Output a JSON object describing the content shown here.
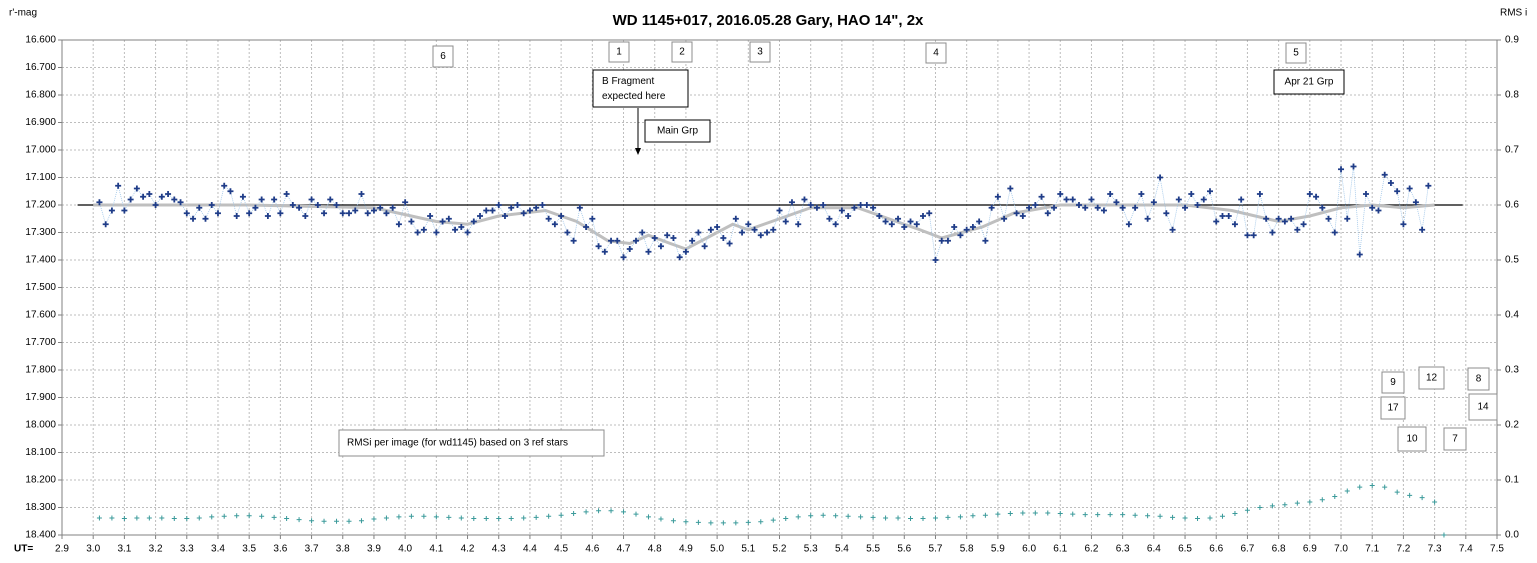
{
  "chart_data": {
    "type": "scatter",
    "title": "WD 1145+017,  2016.05.28  Gary, HAO  14\", 2x",
    "y_label": "r'-mag",
    "y2_label": "RMS i",
    "x_label": "UT=",
    "xlim": [
      2.9,
      7.5
    ],
    "xticks": [
      2.9,
      {
        "value": 3.0,
        "label": "3.0"
      },
      3.1,
      3.2,
      3.3,
      3.4,
      3.5,
      3.6,
      3.7,
      3.8,
      3.9,
      {
        "value": 4.0,
        "label": "4.0"
      },
      4.1,
      4.2,
      4.3,
      4.4,
      4.5,
      4.6,
      4.7,
      4.8,
      4.9,
      {
        "value": 5.0,
        "label": "5.0"
      },
      5.1,
      5.2,
      5.3,
      5.4,
      5.5,
      5.6,
      5.7,
      5.8,
      5.9,
      {
        "value": 6.0,
        "label": "6.0"
      },
      6.1,
      6.2,
      6.3,
      6.4,
      6.5,
      6.6,
      6.7,
      6.8,
      6.9,
      {
        "value": 7.0,
        "label": "7.0"
      },
      7.1,
      7.2,
      7.3,
      7.4,
      7.5
    ],
    "ylim": [
      16.6,
      18.4
    ],
    "y_reversed": true,
    "yticks": [
      {
        "value": 16.6,
        "label": "16.600"
      },
      {
        "value": 16.7,
        "label": "16.700"
      },
      {
        "value": 16.8,
        "label": "16.800"
      },
      {
        "value": 16.9,
        "label": "16.900"
      },
      {
        "value": 17.0,
        "label": "17.000"
      },
      {
        "value": 17.1,
        "label": "17.100"
      },
      {
        "value": 17.2,
        "label": "17.200"
      },
      {
        "value": 17.3,
        "label": "17.300"
      },
      {
        "value": 17.4,
        "label": "17.400"
      },
      {
        "value": 17.5,
        "label": "17.500"
      },
      {
        "value": 17.6,
        "label": "17.600"
      },
      {
        "value": 17.7,
        "label": "17.700"
      },
      {
        "value": 17.8,
        "label": "17.800"
      },
      {
        "value": 17.9,
        "label": "17.900"
      },
      {
        "value": 18.0,
        "label": "18.000"
      },
      {
        "value": 18.1,
        "label": "18.100"
      },
      {
        "value": 18.2,
        "label": "18.200"
      },
      {
        "value": 18.3,
        "label": "18.300"
      },
      {
        "value": 18.4,
        "label": "18.400"
      }
    ],
    "y2lim": [
      0,
      0.9
    ],
    "y2ticks": [
      {
        "value": 0,
        "label": "0.0"
      },
      0.1,
      0.2,
      0.3,
      0.4,
      0.5,
      0.6,
      0.7,
      0.8,
      0.9
    ],
    "grid": true,
    "series": [
      {
        "style": "line",
        "color": "#000000",
        "x": [
          2.95,
          7.39
        ],
        "values": [
          17.2,
          17.2
        ]
      },
      {
        "style": "line",
        "color": "#bfbfbf",
        "x": [
          3.0,
          3.5,
          3.9,
          4.1,
          4.2,
          4.3,
          4.45,
          4.55,
          4.65,
          4.72,
          4.78,
          4.85,
          4.9,
          5.0,
          5.05,
          5.1,
          5.2,
          5.3,
          5.45,
          5.55,
          5.65,
          5.72,
          5.85,
          5.95,
          6.1,
          6.5,
          6.65,
          6.8,
          6.9,
          7.0,
          7.1,
          7.2,
          7.3
        ],
        "values": [
          17.2,
          17.2,
          17.21,
          17.26,
          17.27,
          17.24,
          17.22,
          17.26,
          17.33,
          17.34,
          17.31,
          17.34,
          17.36,
          17.3,
          17.27,
          17.29,
          17.25,
          17.21,
          17.21,
          17.25,
          17.29,
          17.32,
          17.28,
          17.23,
          17.2,
          17.2,
          17.22,
          17.26,
          17.24,
          17.21,
          17.2,
          17.21,
          17.2
        ]
      },
      {
        "style": "marker",
        "color": "#1f3c88",
        "line_color": "#9ec5e8",
        "x": [
          3.02,
          3.04,
          3.06,
          3.08,
          3.1,
          3.12,
          3.14,
          3.16,
          3.18,
          3.2,
          3.22,
          3.24,
          3.26,
          3.28,
          3.3,
          3.32,
          3.34,
          3.36,
          3.38,
          3.4,
          3.42,
          3.44,
          3.46,
          3.48,
          3.5,
          3.52,
          3.54,
          3.56,
          3.58,
          3.6,
          3.62,
          3.64,
          3.66,
          3.68,
          3.7,
          3.72,
          3.74,
          3.76,
          3.78,
          3.8,
          3.82,
          3.84,
          3.86,
          3.88,
          3.9,
          3.92,
          3.94,
          3.96,
          3.98,
          4.0,
          4.02,
          4.04,
          4.06,
          4.08,
          4.1,
          4.12,
          4.14,
          4.16,
          4.18,
          4.2,
          4.22,
          4.24,
          4.26,
          4.28,
          4.3,
          4.32,
          4.34,
          4.36,
          4.38,
          4.4,
          4.42,
          4.44,
          4.46,
          4.48,
          4.5,
          4.52,
          4.54,
          4.56,
          4.58,
          4.6,
          4.62,
          4.64,
          4.66,
          4.68,
          4.7,
          4.72,
          4.74,
          4.76,
          4.78,
          4.8,
          4.82,
          4.84,
          4.86,
          4.88,
          4.9,
          4.92,
          4.94,
          4.96,
          4.98,
          5.0,
          5.02,
          5.04,
          5.06,
          5.08,
          5.1,
          5.12,
          5.14,
          5.16,
          5.18,
          5.2,
          5.22,
          5.24,
          5.26,
          5.28,
          5.3,
          5.32,
          5.34,
          5.36,
          5.38,
          5.4,
          5.42,
          5.44,
          5.46,
          5.48,
          5.5,
          5.52,
          5.54,
          5.56,
          5.58,
          5.6,
          5.62,
          5.64,
          5.66,
          5.68,
          5.7,
          5.72,
          5.74,
          5.76,
          5.78,
          5.8,
          5.82,
          5.84,
          5.86,
          5.88,
          5.9,
          5.92,
          5.94,
          5.96,
          5.98,
          6.0,
          6.02,
          6.04,
          6.06,
          6.08,
          6.1,
          6.12,
          6.14,
          6.16,
          6.18,
          6.2,
          6.22,
          6.24,
          6.26,
          6.28,
          6.3,
          6.32,
          6.34,
          6.36,
          6.38,
          6.4,
          6.42,
          6.44,
          6.46,
          6.48,
          6.5,
          6.52,
          6.54,
          6.56,
          6.58,
          6.6,
          6.62,
          6.64,
          6.66,
          6.68,
          6.7,
          6.72,
          6.74,
          6.76,
          6.78,
          6.8,
          6.82,
          6.84,
          6.86,
          6.88,
          6.9,
          6.92,
          6.94,
          6.96,
          6.98,
          7.0,
          7.02,
          7.04,
          7.06,
          7.08,
          7.1,
          7.12,
          7.14,
          7.16,
          7.18,
          7.2,
          7.22,
          7.24,
          7.26,
          7.28
        ],
        "values": [
          17.19,
          17.27,
          17.22,
          17.13,
          17.22,
          17.18,
          17.14,
          17.17,
          17.16,
          17.2,
          17.17,
          17.16,
          17.18,
          17.19,
          17.23,
          17.25,
          17.21,
          17.25,
          17.2,
          17.23,
          17.13,
          17.15,
          17.24,
          17.17,
          17.23,
          17.21,
          17.18,
          17.24,
          17.18,
          17.23,
          17.16,
          17.2,
          17.21,
          17.24,
          17.18,
          17.2,
          17.23,
          17.18,
          17.2,
          17.23,
          17.23,
          17.22,
          17.16,
          17.23,
          17.22,
          17.21,
          17.23,
          17.21,
          17.27,
          17.19,
          17.26,
          17.3,
          17.29,
          17.24,
          17.3,
          17.26,
          17.25,
          17.29,
          17.28,
          17.3,
          17.26,
          17.24,
          17.22,
          17.22,
          17.2,
          17.24,
          17.21,
          17.2,
          17.23,
          17.22,
          17.21,
          17.2,
          17.25,
          17.27,
          17.24,
          17.3,
          17.33,
          17.21,
          17.28,
          17.25,
          17.35,
          17.37,
          17.33,
          17.33,
          17.39,
          17.36,
          17.33,
          17.3,
          17.37,
          17.32,
          17.35,
          17.31,
          17.32,
          17.39,
          17.37,
          17.33,
          17.3,
          17.35,
          17.29,
          17.28,
          17.32,
          17.34,
          17.25,
          17.3,
          17.27,
          17.29,
          17.31,
          17.3,
          17.29,
          17.22,
          17.26,
          17.19,
          17.27,
          17.18,
          17.2,
          17.21,
          17.2,
          17.25,
          17.27,
          17.22,
          17.24,
          17.21,
          17.2,
          17.2,
          17.21,
          17.24,
          17.26,
          17.27,
          17.25,
          17.28,
          17.26,
          17.27,
          17.24,
          17.23,
          17.4,
          17.33,
          17.33,
          17.28,
          17.31,
          17.29,
          17.28,
          17.26,
          17.33,
          17.21,
          17.17,
          17.25,
          17.14,
          17.23,
          17.24,
          17.21,
          17.2,
          17.17,
          17.23,
          17.21,
          17.16,
          17.18,
          17.18,
          17.2,
          17.21,
          17.18,
          17.21,
          17.22,
          17.16,
          17.19,
          17.21,
          17.27,
          17.21,
          17.16,
          17.25,
          17.19,
          17.1,
          17.23,
          17.29,
          17.18,
          17.21,
          17.16,
          17.2,
          17.18,
          17.15,
          17.26,
          17.24,
          17.24,
          17.27,
          17.18,
          17.31,
          17.31,
          17.16,
          17.25,
          17.3,
          17.25,
          17.26,
          17.25,
          17.29,
          17.27,
          17.16,
          17.17,
          17.21,
          17.25,
          17.3,
          17.07,
          17.25,
          17.06,
          17.38,
          17.16,
          17.21,
          17.22,
          17.09,
          17.12,
          17.15,
          17.27,
          17.14,
          17.19,
          17.29,
          17.13
        ]
      },
      {
        "style": "marker",
        "axis": "y2",
        "color": "#3a9a9a",
        "x": [
          3.02,
          3.06,
          3.1,
          3.14,
          3.18,
          3.22,
          3.26,
          3.3,
          3.34,
          3.38,
          3.42,
          3.46,
          3.5,
          3.54,
          3.58,
          3.62,
          3.66,
          3.7,
          3.74,
          3.78,
          3.82,
          3.86,
          3.9,
          3.94,
          3.98,
          4.02,
          4.06,
          4.1,
          4.14,
          4.18,
          4.22,
          4.26,
          4.3,
          4.34,
          4.38,
          4.42,
          4.46,
          4.5,
          4.54,
          4.58,
          4.62,
          4.66,
          4.7,
          4.74,
          4.78,
          4.82,
          4.86,
          4.9,
          4.94,
          4.98,
          5.02,
          5.06,
          5.1,
          5.14,
          5.18,
          5.22,
          5.26,
          5.3,
          5.34,
          5.38,
          5.42,
          5.46,
          5.5,
          5.54,
          5.58,
          5.62,
          5.66,
          5.7,
          5.74,
          5.78,
          5.82,
          5.86,
          5.9,
          5.94,
          5.98,
          6.02,
          6.06,
          6.1,
          6.14,
          6.18,
          6.22,
          6.26,
          6.3,
          6.34,
          6.38,
          6.42,
          6.46,
          6.5,
          6.54,
          6.58,
          6.62,
          6.66,
          6.7,
          6.74,
          6.78,
          6.82,
          6.86,
          6.9,
          6.94,
          6.98,
          7.02,
          7.06,
          7.1,
          7.14,
          7.18,
          7.22,
          7.26,
          7.3,
          7.33
        ],
        "values": [
          0.031,
          0.031,
          0.03,
          0.031,
          0.031,
          0.031,
          0.03,
          0.03,
          0.031,
          0.033,
          0.034,
          0.035,
          0.035,
          0.034,
          0.032,
          0.03,
          0.028,
          0.026,
          0.025,
          0.025,
          0.025,
          0.026,
          0.029,
          0.031,
          0.033,
          0.034,
          0.034,
          0.033,
          0.032,
          0.031,
          0.03,
          0.03,
          0.03,
          0.03,
          0.031,
          0.032,
          0.034,
          0.036,
          0.039,
          0.042,
          0.044,
          0.044,
          0.042,
          0.038,
          0.033,
          0.029,
          0.026,
          0.024,
          0.023,
          0.022,
          0.022,
          0.022,
          0.023,
          0.024,
          0.027,
          0.03,
          0.033,
          0.035,
          0.036,
          0.035,
          0.034,
          0.033,
          0.032,
          0.031,
          0.031,
          0.03,
          0.03,
          0.031,
          0.032,
          0.033,
          0.035,
          0.036,
          0.038,
          0.039,
          0.04,
          0.04,
          0.04,
          0.039,
          0.038,
          0.037,
          0.037,
          0.037,
          0.037,
          0.036,
          0.035,
          0.034,
          0.032,
          0.031,
          0.03,
          0.031,
          0.034,
          0.039,
          0.045,
          0.05,
          0.053,
          0.055,
          0.058,
          0.06,
          0.064,
          0.07,
          0.08,
          0.087,
          0.09,
          0.087,
          0.078,
          0.072,
          0.068,
          0.06,
          0
        ]
      }
    ],
    "annotations": [
      "6",
      "1",
      "2",
      "3",
      "4",
      "5",
      "B Fragment expected here",
      "Main Grp",
      "Apr 21 Grp",
      "9",
      "12",
      "8",
      "17",
      "14",
      "10",
      "7",
      "RMSi per image (for wd1145) based on 3 ref stars"
    ]
  }
}
